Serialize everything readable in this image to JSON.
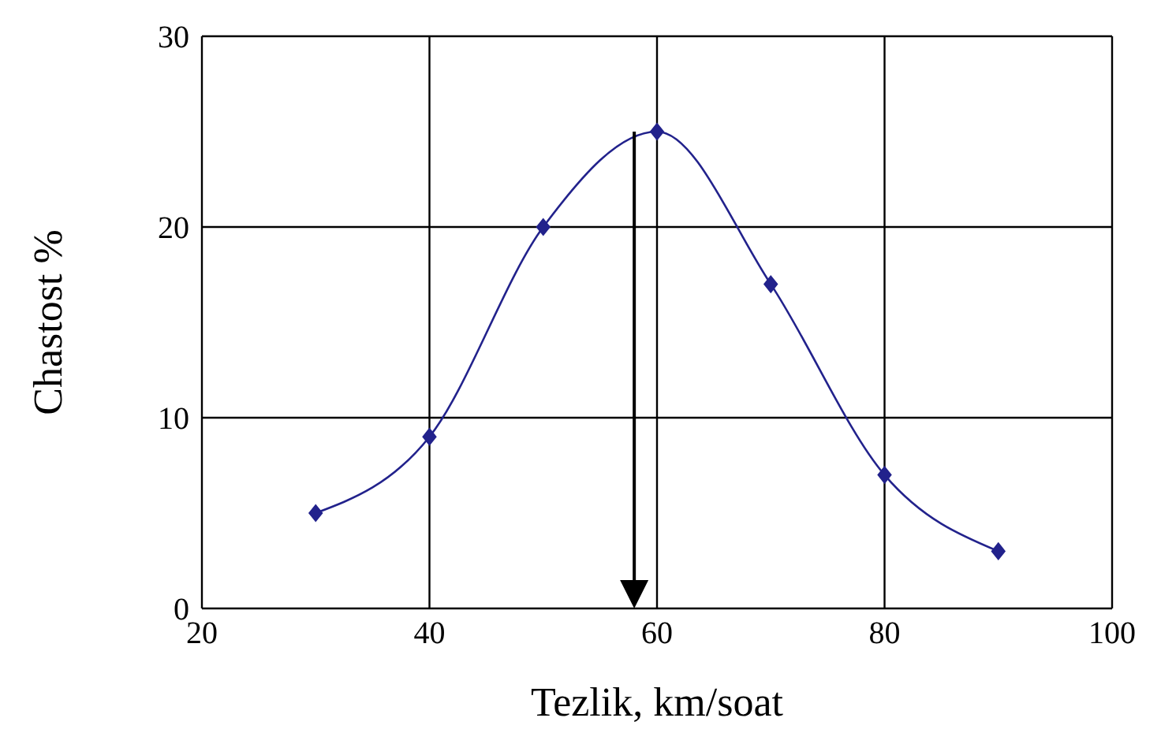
{
  "chart_data": {
    "type": "line",
    "xlabel": "Tezlik, km/soat",
    "ylabel": "Chastost %",
    "x": [
      30,
      40,
      50,
      60,
      70,
      80,
      90
    ],
    "series": [
      {
        "color": "#22228c",
        "values": [
          5,
          9,
          20,
          25,
          17,
          7,
          3
        ]
      }
    ],
    "xlim": [
      20,
      100
    ],
    "xticks": [
      20,
      40,
      60,
      80,
      100
    ],
    "ylim": [
      0,
      30
    ],
    "yticks": [
      0,
      10,
      20,
      30
    ],
    "grid": true,
    "marker": "diamond",
    "line_style": "solid",
    "ref_lines": [
      {
        "axis": "x",
        "value": 58,
        "color": "#000000",
        "line_style": "solid"
      }
    ]
  }
}
